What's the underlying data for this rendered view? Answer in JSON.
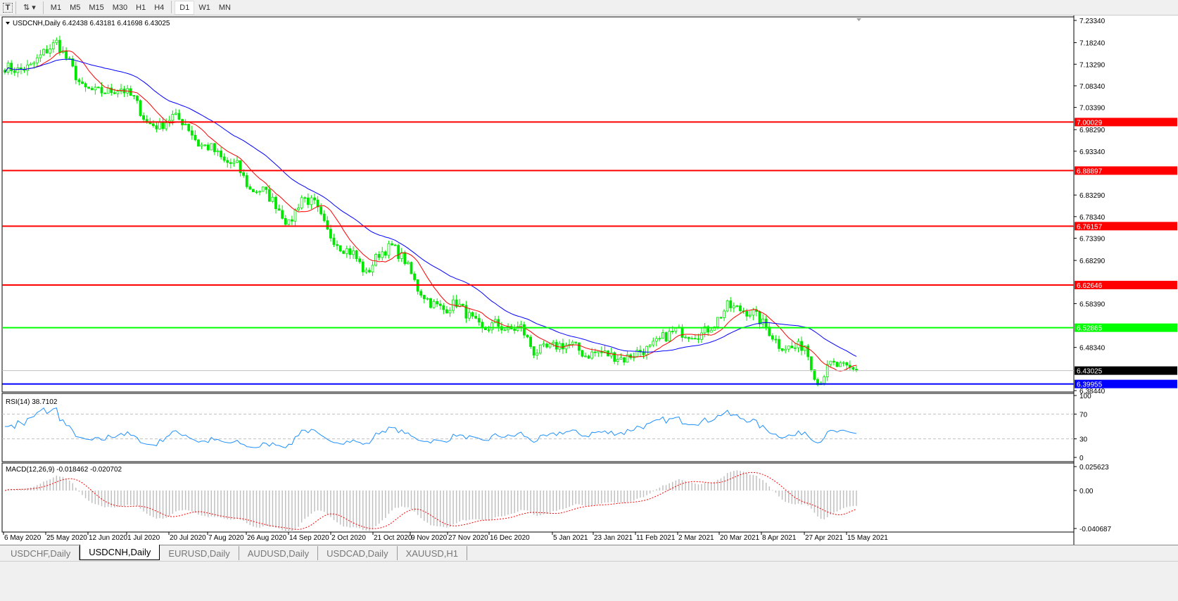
{
  "toolbar": {
    "icons": [
      "text-tool-icon",
      "objects-tool-icon"
    ],
    "timeframes": [
      "M1",
      "M5",
      "M15",
      "M30",
      "H1",
      "H4",
      "D1",
      "W1",
      "MN"
    ],
    "active_timeframe": "D1"
  },
  "chart": {
    "header": "USDCNH,Daily  6.42438 6.43181 6.41698 6.43025",
    "price_ticks": [
      "7.23340",
      "7.18240",
      "7.13290",
      "7.08340",
      "7.03390",
      "6.98290",
      "6.93340",
      "6.83290",
      "6.78340",
      "6.73390",
      "6.68290",
      "6.58390",
      "6.48340",
      "6.38440"
    ],
    "levels": [
      {
        "price": "7.00029",
        "color": "#ff0000"
      },
      {
        "price": "6.88897",
        "color": "#ff0000"
      },
      {
        "price": "6.76157",
        "color": "#ff0000"
      },
      {
        "price": "6.62646",
        "color": "#ff0000"
      },
      {
        "price": "6.52865",
        "color": "#00ff00"
      },
      {
        "price": "6.39955",
        "color": "#0000ff"
      }
    ],
    "current_price": "6.43025",
    "candle_color": "#00e600",
    "ma_fast_color": "#ff0000",
    "ma_slow_color": "#0000ff",
    "close_path": [
      7.127,
      7.119,
      7.127,
      7.159,
      7.183,
      7.135,
      7.078,
      7.07,
      7.07,
      7.078,
      7.054,
      6.998,
      6.99,
      7.014,
      6.998,
      6.949,
      6.941,
      6.909,
      6.901,
      6.844,
      6.844,
      6.812,
      6.764,
      6.828,
      6.812,
      6.748,
      6.715,
      6.699,
      6.651,
      6.699,
      6.715,
      6.683,
      6.618,
      6.586,
      6.57,
      6.586,
      6.554,
      6.522,
      6.538,
      6.522,
      6.53,
      6.473,
      6.481,
      6.489,
      6.489,
      6.465,
      6.473,
      6.465,
      6.457,
      6.473,
      6.481,
      6.506,
      6.522,
      6.514,
      6.514,
      6.538,
      6.578,
      6.57,
      6.562,
      6.53,
      6.489,
      6.481,
      6.489,
      6.4,
      6.445,
      6.437,
      6.43
    ],
    "date_labels": [
      "6 May 2020",
      "25 May 2020",
      "12 Jun 2020",
      "1 Jul 2020",
      "20 Jul 2020",
      "7 Aug 2020",
      "26 Aug 2020",
      "14 Sep 2020",
      "2 Oct 2020",
      "21 Oct 2020",
      "9 Nov 2020",
      "27 Nov 2020",
      "16 Dec 2020",
      "5 Jan 2021",
      "23 Jan 2021",
      "11 Feb 2021",
      "2 Mar 2021",
      "20 Mar 2021",
      "8 Apr 2021",
      "27 Apr 2021",
      "15 May 2021"
    ]
  },
  "rsi": {
    "label": "RSI(14) 38.7102",
    "ticks": [
      "100",
      "70",
      "30",
      "0"
    ],
    "color": "#1e90ff"
  },
  "macd": {
    "label": "MACD(12,26,9) -0.018462 -0.020702",
    "ticks": [
      "0.025623",
      "0.00",
      "-0.040687"
    ],
    "histogram_color": "#c0c0c0",
    "signal_color": "#ff0000"
  },
  "tabs": [
    {
      "label": "USDCHF,Daily",
      "active": false
    },
    {
      "label": "USDCNH,Daily",
      "active": true
    },
    {
      "label": "EURUSD,Daily",
      "active": false
    },
    {
      "label": "AUDUSD,Daily",
      "active": false
    },
    {
      "label": "USDCAD,Daily",
      "active": false
    },
    {
      "label": "XAUUSD,H1",
      "active": false
    }
  ]
}
